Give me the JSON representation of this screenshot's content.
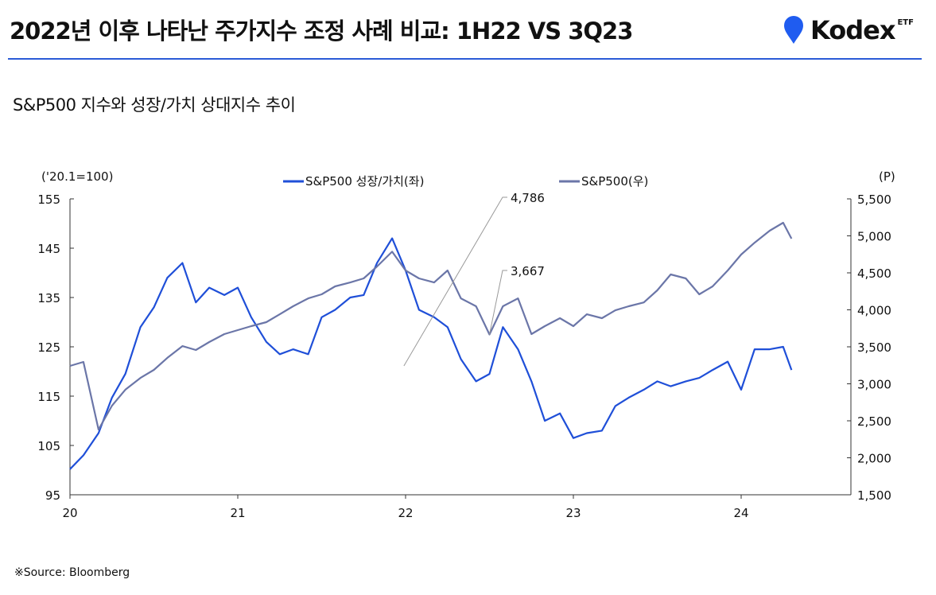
{
  "header": {
    "title": "2022년 이후 나타난 주가지수 조정 사례 비교: 1H22 VS 3Q23",
    "logo": "Kodex",
    "logo_suffix": "ETF"
  },
  "subtitle": "S&P500 지수와 성장/가치 상대지수 추이",
  "source": "※Source: Bloomberg",
  "colors": {
    "growth_value": "#1f4fd8",
    "sp500": "#6b76a8",
    "accent": "#2b5bd7"
  },
  "chart_data": {
    "type": "line",
    "left_unit": "('20.1=100)",
    "right_unit": "(P)",
    "left_ticks": [
      "155",
      "145",
      "135",
      "125",
      "115",
      "105",
      "95"
    ],
    "right_ticks": [
      "5,500",
      "5,000",
      "4,500",
      "4,000",
      "3,500",
      "3,000",
      "2,500",
      "2,000",
      "1,500"
    ],
    "x_ticks": [
      "20",
      "21",
      "22",
      "23",
      "24"
    ],
    "ylim_left": [
      95,
      155
    ],
    "ylim_right": [
      1500,
      5500
    ],
    "xlim": [
      2020,
      2024.6
    ],
    "annotations": [
      {
        "label": "4,786",
        "x": 2021.99,
        "series": "sp500"
      },
      {
        "label": "3,667",
        "x": 2022.5,
        "series": "sp500"
      }
    ],
    "series": [
      {
        "name": "S&P500 성장/가치(좌)",
        "axis": "left",
        "x": [
          2020,
          2020.08,
          2020.17,
          2020.25,
          2020.33,
          2020.42,
          2020.5,
          2020.58,
          2020.67,
          2020.75,
          2020.83,
          2020.92,
          2021,
          2021.08,
          2021.17,
          2021.25,
          2021.33,
          2021.42,
          2021.5,
          2021.58,
          2021.67,
          2021.75,
          2021.83,
          2021.92,
          2022,
          2022.08,
          2022.17,
          2022.25,
          2022.33,
          2022.42,
          2022.5,
          2022.58,
          2022.67,
          2022.75,
          2022.83,
          2022.92,
          2023,
          2023.08,
          2023.17,
          2023.25,
          2023.33,
          2023.42,
          2023.5,
          2023.58,
          2023.67,
          2023.75,
          2023.83,
          2023.92,
          2024,
          2024.08,
          2024.17,
          2024.25,
          2024.3
        ],
        "values": [
          100.2,
          103,
          107.5,
          114.7,
          119.5,
          129,
          133,
          139,
          142,
          134,
          137,
          135.5,
          137,
          131,
          126,
          123.5,
          124.5,
          123.5,
          131,
          132.5,
          135,
          135.5,
          142,
          147,
          140.5,
          132.5,
          131,
          129,
          122.5,
          118,
          119.5,
          129,
          124.5,
          118,
          110,
          111.5,
          106.5,
          107.5,
          108,
          113,
          114.7,
          116.3,
          118,
          117,
          118,
          118.7,
          120.3,
          122,
          116.3,
          124.5,
          124.5,
          125,
          120.3
        ]
      },
      {
        "name": "S&P500(우)",
        "axis": "right",
        "x": [
          2020,
          2020.08,
          2020.17,
          2020.25,
          2020.33,
          2020.42,
          2020.5,
          2020.58,
          2020.67,
          2020.75,
          2020.83,
          2020.92,
          2021,
          2021.08,
          2021.17,
          2021.25,
          2021.33,
          2021.42,
          2021.5,
          2021.58,
          2021.67,
          2021.75,
          2021.83,
          2021.92,
          2022,
          2022.08,
          2022.17,
          2022.25,
          2022.33,
          2022.42,
          2022.5,
          2022.58,
          2022.67,
          2022.75,
          2022.83,
          2022.92,
          2023,
          2023.08,
          2023.17,
          2023.25,
          2023.33,
          2023.42,
          2023.5,
          2023.58,
          2023.67,
          2023.75,
          2023.83,
          2023.92,
          2024,
          2024.08,
          2024.17,
          2024.25,
          2024.3
        ],
        "values": [
          3242,
          3296,
          2382,
          2704,
          2920,
          3080,
          3188,
          3350,
          3510,
          3457,
          3565,
          3672,
          3726,
          3780,
          3833,
          3940,
          4048,
          4155,
          4210,
          4317,
          4370,
          4425,
          4586,
          4786,
          4532,
          4425,
          4370,
          4532,
          4155,
          4048,
          3667,
          4048,
          4155,
          3672,
          3780,
          3887,
          3780,
          3940,
          3887,
          3994,
          4048,
          4100,
          4263,
          4478,
          4425,
          4210,
          4317,
          4532,
          4747,
          4908,
          5070,
          5177,
          4962
        ]
      }
    ]
  }
}
